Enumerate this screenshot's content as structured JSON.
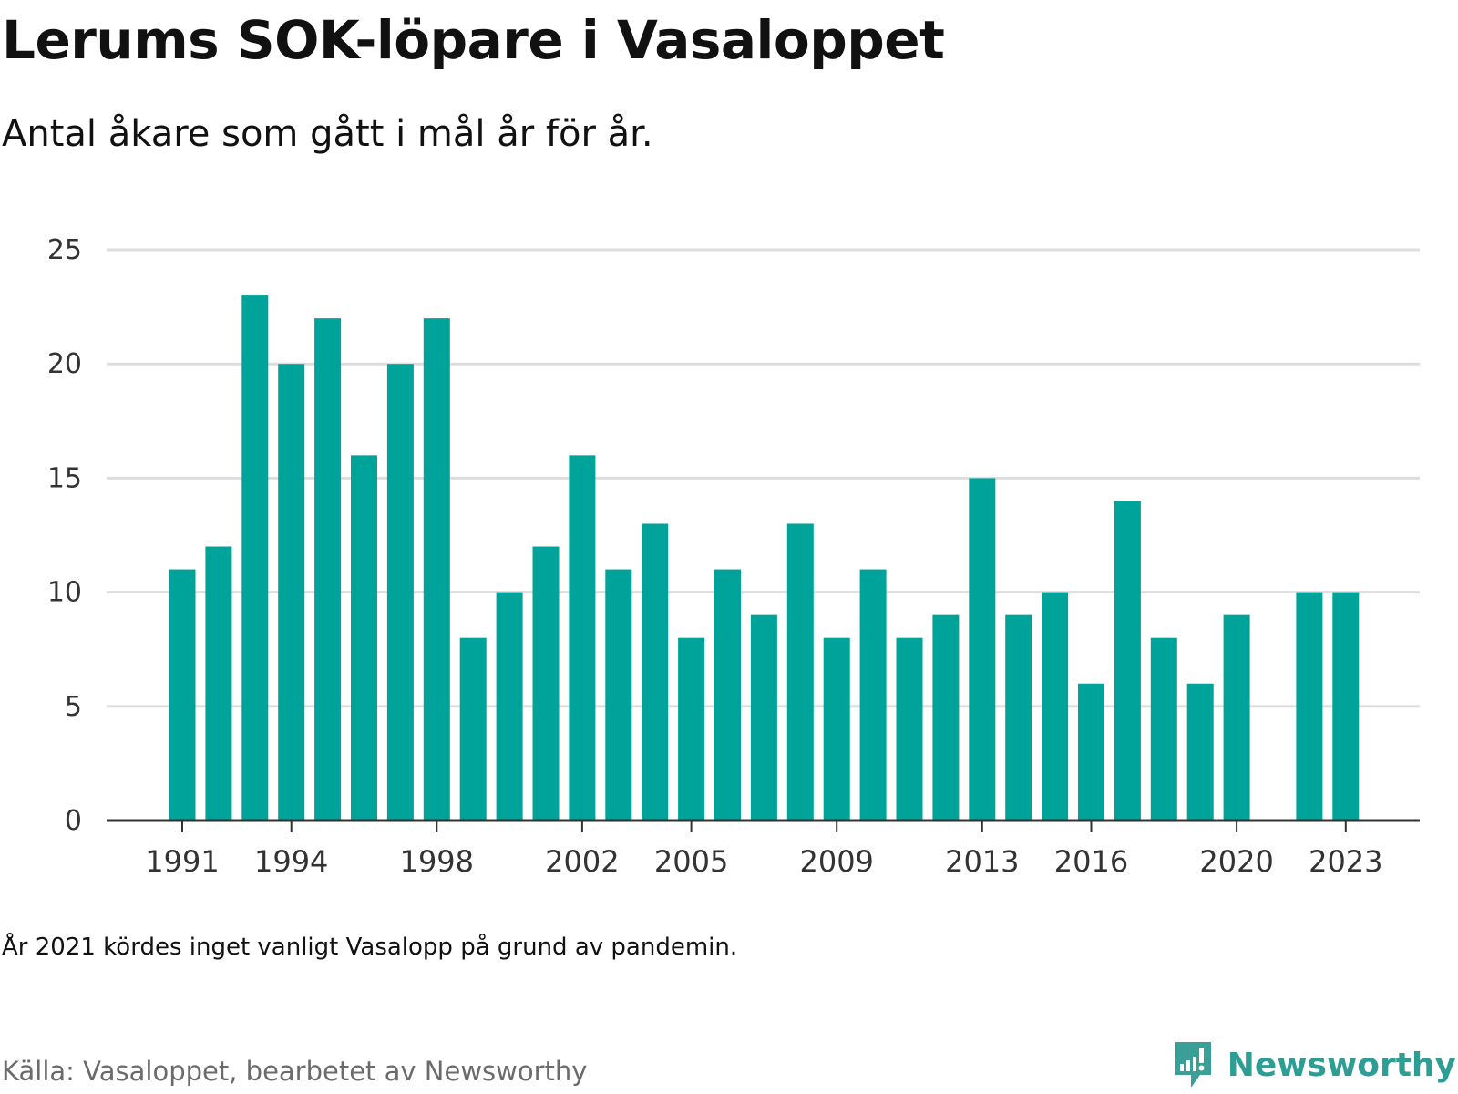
{
  "title": "Lerums SOK-löpare i Vasaloppet",
  "subtitle": "Antal åkare som gått i mål år för år.",
  "note": "År 2021 kördes inget vanligt Vasalopp på grund av pandemin.",
  "source": "Källa: Vasaloppet, bearbetet av Newsworthy",
  "brand": {
    "name": "Newsworthy",
    "icon": "newsworthy-logo-icon",
    "color": "#2e9e95"
  },
  "colors": {
    "bar": "#00a39a",
    "grid": "#dddddd",
    "axis": "#333333"
  },
  "chart_data": {
    "type": "bar",
    "title": "Lerums SOK-löpare i Vasaloppet",
    "subtitle": "Antal åkare som gått i mål år för år.",
    "categories": [
      1991,
      1992,
      1993,
      1994,
      1995,
      1996,
      1997,
      1998,
      1999,
      2000,
      2001,
      2002,
      2003,
      2004,
      2005,
      2006,
      2007,
      2008,
      2009,
      2010,
      2011,
      2012,
      2013,
      2014,
      2015,
      2016,
      2017,
      2018,
      2019,
      2020,
      2021,
      2022,
      2023
    ],
    "values": [
      11,
      12,
      23,
      20,
      22,
      16,
      20,
      22,
      8,
      10,
      12,
      16,
      11,
      13,
      8,
      11,
      9,
      13,
      8,
      11,
      8,
      9,
      15,
      9,
      10,
      6,
      14,
      8,
      6,
      9,
      null,
      10,
      10
    ],
    "x_tick_labels": [
      "1991",
      "1994",
      "1998",
      "2002",
      "2005",
      "2009",
      "2013",
      "2016",
      "2020",
      "2023"
    ],
    "y_ticks": [
      0,
      5,
      10,
      15,
      20,
      25
    ],
    "ylim": [
      0,
      25
    ],
    "xlabel": "",
    "ylabel": "",
    "grid": true,
    "legend": "none"
  }
}
